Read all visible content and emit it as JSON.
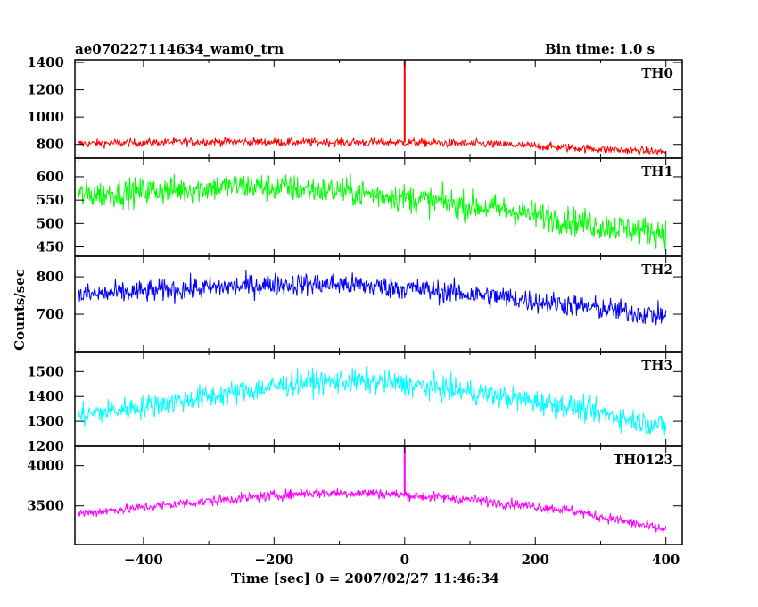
{
  "header": {
    "title": "ae070227114634_wam0_trn",
    "bin_time": "Bin time: 1.0 s"
  },
  "chart_data": {
    "type": "line",
    "xlabel": "Time [sec] 0 = 2007/02/27 11:46:34",
    "ylabel": "Counts/sec",
    "xlim": [
      -505,
      425
    ],
    "x_ticks": [
      -400,
      -200,
      0,
      200,
      400
    ],
    "grid": false,
    "panels": [
      {
        "name": "TH0",
        "color": "#ff0000",
        "ylim": [
          700,
          1420
        ],
        "y_ticks": [
          800,
          1000,
          1200,
          1400
        ],
        "trend": [
          [
            -505,
            805
          ],
          [
            -300,
            820
          ],
          [
            -100,
            815
          ],
          [
            0,
            815
          ],
          [
            150,
            800
          ],
          [
            300,
            765
          ],
          [
            400,
            745
          ]
        ],
        "noise": 28,
        "spikes": [
          [
            0,
            1420
          ]
        ]
      },
      {
        "name": "TH1",
        "color": "#00ff00",
        "ylim": [
          430,
          640
        ],
        "y_ticks": [
          450,
          500,
          550,
          600
        ],
        "trend": [
          [
            -505,
            560
          ],
          [
            -250,
            580
          ],
          [
            -100,
            570
          ],
          [
            0,
            555
          ],
          [
            150,
            530
          ],
          [
            300,
            495
          ],
          [
            400,
            480
          ]
        ],
        "noise": 28,
        "spikes": []
      },
      {
        "name": "TH2",
        "color": "#0000ff",
        "ylim": [
          600,
          855
        ],
        "y_ticks": [
          700,
          800
        ],
        "trend": [
          [
            -505,
            750
          ],
          [
            -200,
            780
          ],
          [
            -100,
            780
          ],
          [
            0,
            770
          ],
          [
            150,
            745
          ],
          [
            300,
            715
          ],
          [
            400,
            695
          ]
        ],
        "noise": 28,
        "spikes": []
      },
      {
        "name": "TH3",
        "color": "#00ffff",
        "ylim": [
          1200,
          1580
        ],
        "y_ticks": [
          1200,
          1300,
          1400,
          1500
        ],
        "trend": [
          [
            -505,
            1320
          ],
          [
            -300,
            1400
          ],
          [
            -150,
            1460
          ],
          [
            -50,
            1460
          ],
          [
            100,
            1420
          ],
          [
            250,
            1360
          ],
          [
            400,
            1280
          ]
        ],
        "noise": 45,
        "spikes": []
      },
      {
        "name": "TH0123",
        "color": "#ff00ff",
        "ylim": [
          3020,
          4240
        ],
        "y_ticks": [
          3500,
          4000
        ],
        "trend": [
          [
            -505,
            3400
          ],
          [
            -300,
            3560
          ],
          [
            -150,
            3660
          ],
          [
            -50,
            3660
          ],
          [
            100,
            3580
          ],
          [
            250,
            3450
          ],
          [
            400,
            3200
          ]
        ],
        "noise": 60,
        "spikes": [
          [
            0,
            4230
          ]
        ]
      }
    ]
  }
}
